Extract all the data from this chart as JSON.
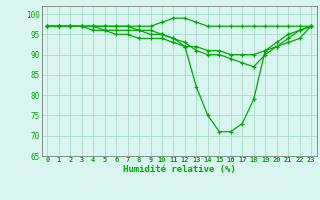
{
  "xlabel": "Humidité relative (%)",
  "hours": [
    0,
    1,
    2,
    3,
    4,
    5,
    6,
    7,
    8,
    9,
    10,
    11,
    12,
    13,
    14,
    15,
    16,
    17,
    18,
    19,
    20,
    21,
    22,
    23
  ],
  "line1": [
    97,
    97,
    97,
    97,
    97,
    97,
    97,
    97,
    97,
    97,
    98,
    99,
    99,
    98,
    97,
    97,
    97,
    97,
    97,
    97,
    97,
    97,
    97,
    97
  ],
  "line2": [
    97,
    97,
    97,
    97,
    97,
    97,
    97,
    97,
    96,
    96,
    95,
    94,
    92,
    82,
    75,
    71,
    71,
    73,
    79,
    91,
    93,
    95,
    96,
    97
  ],
  "line3": [
    97,
    97,
    97,
    97,
    97,
    96,
    96,
    96,
    96,
    95,
    95,
    94,
    93,
    91,
    90,
    90,
    89,
    88,
    87,
    90,
    92,
    94,
    96,
    97
  ],
  "line4": [
    97,
    97,
    97,
    97,
    96,
    96,
    95,
    95,
    94,
    94,
    94,
    93,
    92,
    92,
    91,
    91,
    90,
    90,
    90,
    91,
    92,
    93,
    94,
    97
  ],
  "bg_color": "#d8f5f0",
  "grid_color": "#aaddcc",
  "line_color": "#00aa00",
  "ylim": [
    65,
    102
  ],
  "yticks": [
    65,
    70,
    75,
    80,
    85,
    90,
    95,
    100
  ],
  "xlim": [
    -0.5,
    23.5
  ]
}
